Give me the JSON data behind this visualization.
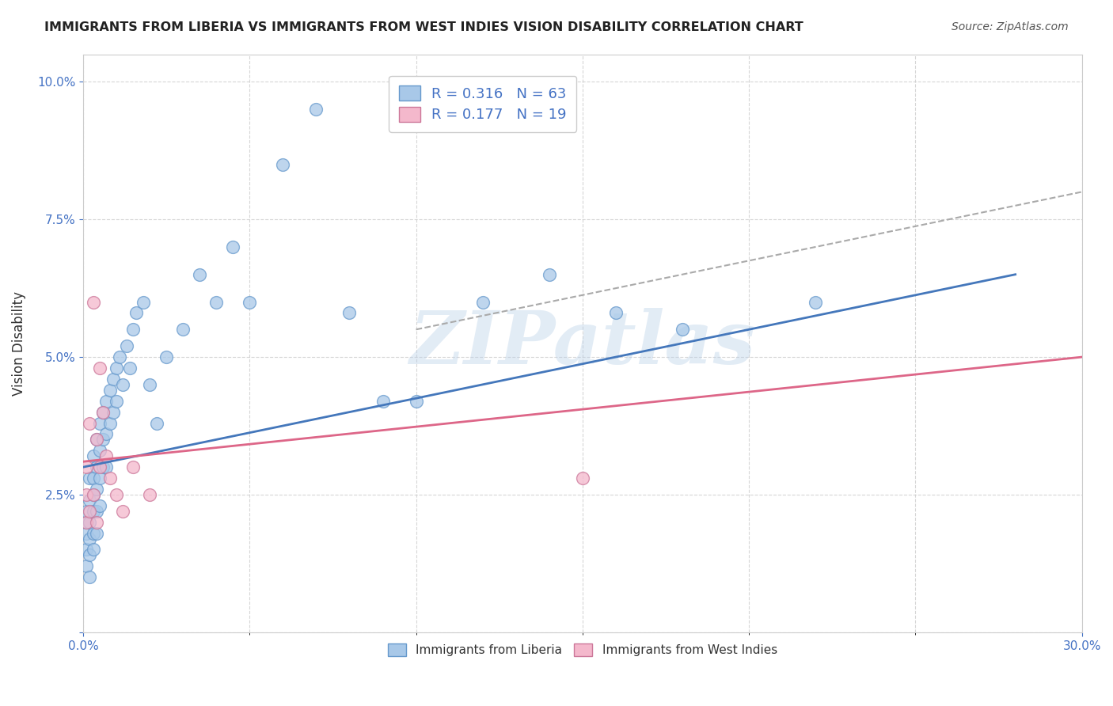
{
  "title": "IMMIGRANTS FROM LIBERIA VS IMMIGRANTS FROM WEST INDIES VISION DISABILITY CORRELATION CHART",
  "source": "Source: ZipAtlas.com",
  "ylabel": "Vision Disability",
  "xlim": [
    0.0,
    0.3
  ],
  "ylim": [
    0.0,
    0.105
  ],
  "xticks": [
    0.0,
    0.3
  ],
  "xticklabels": [
    "0.0%",
    "30.0%"
  ],
  "yticks": [
    0.0,
    0.025,
    0.05,
    0.075,
    0.1
  ],
  "yticklabels": [
    "",
    "2.5%",
    "5.0%",
    "7.5%",
    "10.0%"
  ],
  "watermark": "ZIPatlas",
  "legend_R1": "0.316",
  "legend_N1": "63",
  "legend_R2": "0.177",
  "legend_N2": "19",
  "color_liberia": "#a8c8e8",
  "color_west_indies": "#f4b8cc",
  "color_edge_liberia": "#6699cc",
  "color_edge_west_indies": "#cc7799",
  "color_line_liberia": "#4477bb",
  "color_line_west_indies": "#dd6688",
  "color_grid": "#cccccc",
  "background": "#ffffff",
  "liberia_x": [
    0.001,
    0.001,
    0.001,
    0.001,
    0.001,
    0.002,
    0.002,
    0.002,
    0.002,
    0.002,
    0.002,
    0.003,
    0.003,
    0.003,
    0.003,
    0.003,
    0.003,
    0.004,
    0.004,
    0.004,
    0.004,
    0.004,
    0.005,
    0.005,
    0.005,
    0.005,
    0.006,
    0.006,
    0.006,
    0.007,
    0.007,
    0.007,
    0.008,
    0.008,
    0.009,
    0.009,
    0.01,
    0.01,
    0.011,
    0.012,
    0.013,
    0.014,
    0.015,
    0.016,
    0.018,
    0.02,
    0.022,
    0.025,
    0.03,
    0.035,
    0.04,
    0.045,
    0.05,
    0.06,
    0.07,
    0.08,
    0.09,
    0.1,
    0.12,
    0.14,
    0.16,
    0.18,
    0.22
  ],
  "liberia_y": [
    0.02,
    0.022,
    0.018,
    0.015,
    0.012,
    0.028,
    0.024,
    0.02,
    0.017,
    0.014,
    0.01,
    0.032,
    0.028,
    0.025,
    0.022,
    0.018,
    0.015,
    0.035,
    0.03,
    0.026,
    0.022,
    0.018,
    0.038,
    0.033,
    0.028,
    0.023,
    0.04,
    0.035,
    0.03,
    0.042,
    0.036,
    0.03,
    0.044,
    0.038,
    0.046,
    0.04,
    0.048,
    0.042,
    0.05,
    0.045,
    0.052,
    0.048,
    0.055,
    0.058,
    0.06,
    0.045,
    0.038,
    0.05,
    0.055,
    0.065,
    0.06,
    0.07,
    0.06,
    0.085,
    0.095,
    0.058,
    0.042,
    0.042,
    0.06,
    0.065,
    0.058,
    0.055,
    0.06
  ],
  "west_indies_x": [
    0.001,
    0.001,
    0.001,
    0.002,
    0.002,
    0.003,
    0.003,
    0.004,
    0.004,
    0.005,
    0.005,
    0.006,
    0.007,
    0.008,
    0.01,
    0.012,
    0.015,
    0.02,
    0.15
  ],
  "west_indies_y": [
    0.03,
    0.025,
    0.02,
    0.038,
    0.022,
    0.06,
    0.025,
    0.035,
    0.02,
    0.048,
    0.03,
    0.04,
    0.032,
    0.028,
    0.025,
    0.022,
    0.03,
    0.025,
    0.028
  ],
  "blue_line_x0": 0.0,
  "blue_line_y0": 0.03,
  "blue_line_x1": 0.28,
  "blue_line_y1": 0.065,
  "pink_line_x0": 0.0,
  "pink_line_y0": 0.031,
  "pink_line_x1": 0.3,
  "pink_line_y1": 0.05,
  "gray_line_x0": 0.1,
  "gray_line_y0": 0.055,
  "gray_line_x1": 0.3,
  "gray_line_y1": 0.08
}
